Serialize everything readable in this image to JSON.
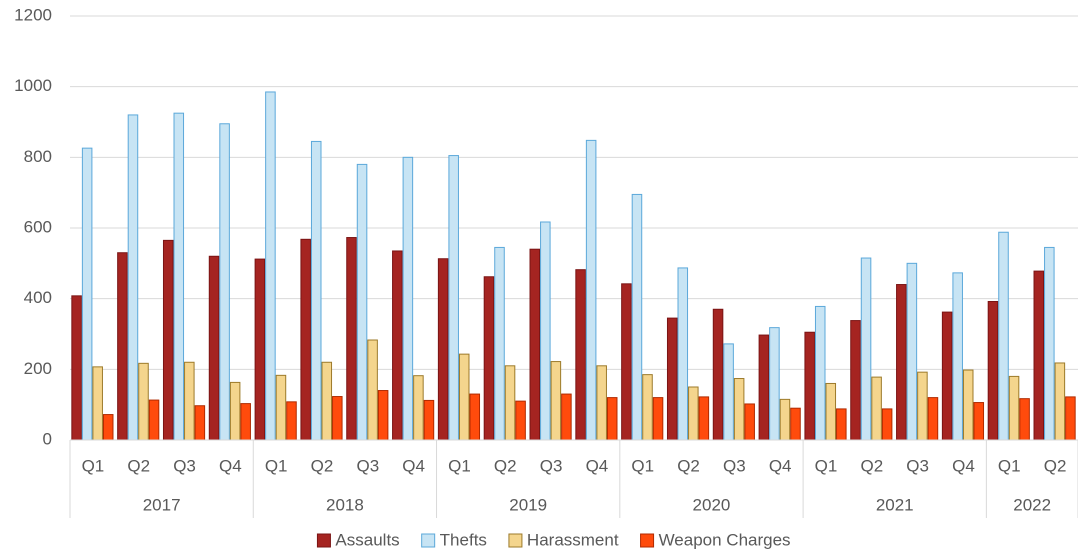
{
  "chart_data": {
    "type": "bar",
    "groups": [
      {
        "name": "2017",
        "categories": [
          "Q1",
          "Q2",
          "Q3",
          "Q4"
        ]
      },
      {
        "name": "2018",
        "categories": [
          "Q1",
          "Q2",
          "Q3",
          "Q4"
        ]
      },
      {
        "name": "2019",
        "categories": [
          "Q1",
          "Q2",
          "Q3",
          "Q4"
        ]
      },
      {
        "name": "2020",
        "categories": [
          "Q1",
          "Q2",
          "Q3",
          "Q4"
        ]
      },
      {
        "name": "2021",
        "categories": [
          "Q1",
          "Q2",
          "Q3",
          "Q4"
        ]
      },
      {
        "name": "2022",
        "categories": [
          "Q1",
          "Q2"
        ]
      }
    ],
    "series": [
      {
        "name": "Assaults",
        "color": "#a52421",
        "edge_color": "#7a1414",
        "values": [
          408,
          530,
          565,
          520,
          512,
          568,
          573,
          535,
          513,
          462,
          540,
          482,
          442,
          345,
          370,
          297,
          305,
          338,
          440,
          362,
          392,
          478
        ]
      },
      {
        "name": "Thefts",
        "color": "#c7e4f4",
        "edge_color": "#5ba8da",
        "values": [
          826,
          920,
          925,
          895,
          985,
          845,
          780,
          800,
          805,
          545,
          617,
          848,
          695,
          487,
          272,
          318,
          378,
          515,
          500,
          473,
          588,
          545
        ]
      },
      {
        "name": "Harassment",
        "color": "#f4d58d",
        "edge_color": "#9c7a2a",
        "values": [
          207,
          217,
          220,
          163,
          183,
          220,
          283,
          182,
          243,
          210,
          222,
          210,
          185,
          150,
          174,
          115,
          160,
          178,
          192,
          198,
          180,
          218
        ]
      },
      {
        "name": "Weapon Charges",
        "color": "#ff4b0c",
        "edge_color": "#b02a00",
        "values": [
          72,
          113,
          97,
          103,
          108,
          123,
          140,
          112,
          130,
          110,
          130,
          120,
          120,
          122,
          102,
          90,
          88,
          88,
          120,
          106,
          117,
          122
        ]
      }
    ],
    "ylim": [
      0,
      1200
    ],
    "yticks": [
      0,
      200,
      400,
      600,
      800,
      1000,
      1200
    ],
    "grid": true,
    "legend": "bottom"
  }
}
